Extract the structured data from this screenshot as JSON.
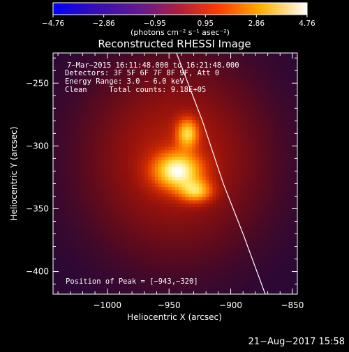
{
  "chart_data": {
    "type": "heatmap",
    "title": "Reconstructed RHESSI Image",
    "xlabel": "Heliocentric X (arcsec)",
    "ylabel": "Heliocentric Y (arcsec)",
    "xlim": [
      -1044,
      -846
    ],
    "ylim": [
      -418,
      -226
    ],
    "x_ticks": [
      -1000,
      -950,
      -900,
      -850
    ],
    "x_tick_labels": [
      "−1000",
      "−950",
      "−900",
      "−850"
    ],
    "y_ticks": [
      -250,
      -300,
      -350,
      -400
    ],
    "y_tick_labels": [
      "−250",
      "−300",
      "−350",
      "−400"
    ],
    "colorbar": {
      "min": -4.76,
      "max": 4.76,
      "ticks": [
        -4.76,
        -2.86,
        -0.95,
        0.95,
        2.86,
        4.76
      ],
      "tick_labels": [
        "−4.76",
        "−2.86",
        "−0.95",
        "0.95",
        "2.86",
        "4.76"
      ],
      "unit_label": "(photons cm⁻² s⁻¹ asec⁻²)",
      "colormap": "blue-purple-red-yellow-white"
    },
    "sources": [
      {
        "x": -943,
        "y": -320,
        "sigma_x": 13,
        "sigma_y": 10,
        "amplitude": 4.76
      },
      {
        "x": -935,
        "y": -290,
        "sigma_x": 6,
        "sigma_y": 8,
        "amplitude": 3.6
      },
      {
        "x": -928,
        "y": -336,
        "sigma_x": 9,
        "sigma_y": 6,
        "amplitude": 3.3
      },
      {
        "x": -945,
        "y": -310,
        "sigma_x": 45,
        "sigma_y": 48,
        "amplitude": 1.6
      }
    ],
    "background_level": 0.15,
    "limb_curve": [
      [
        -944,
        -226
      ],
      [
        -923,
        -280
      ],
      [
        -906,
        -330
      ],
      [
        -890,
        -370
      ],
      [
        -872,
        -418
      ]
    ],
    "annotations": {
      "time_range": "7−Mar−2015 16:11:48.000 to 16:21:48.000",
      "detectors": "Detectors: 3F 5F 6F 7F 8F 9F, Att 0",
      "energy_range": "Energy Range: 3.0 − 6.0 keV",
      "clean_info": "Clean     Total counts: 9.18E+05",
      "peak_position": "Position of Peak = [−943,−320]"
    }
  },
  "footer": {
    "timestamp": "21−Aug−2017 15:58"
  },
  "colors": {
    "background": "#000000",
    "limb": "#ffffff",
    "text": "#ffffff"
  }
}
